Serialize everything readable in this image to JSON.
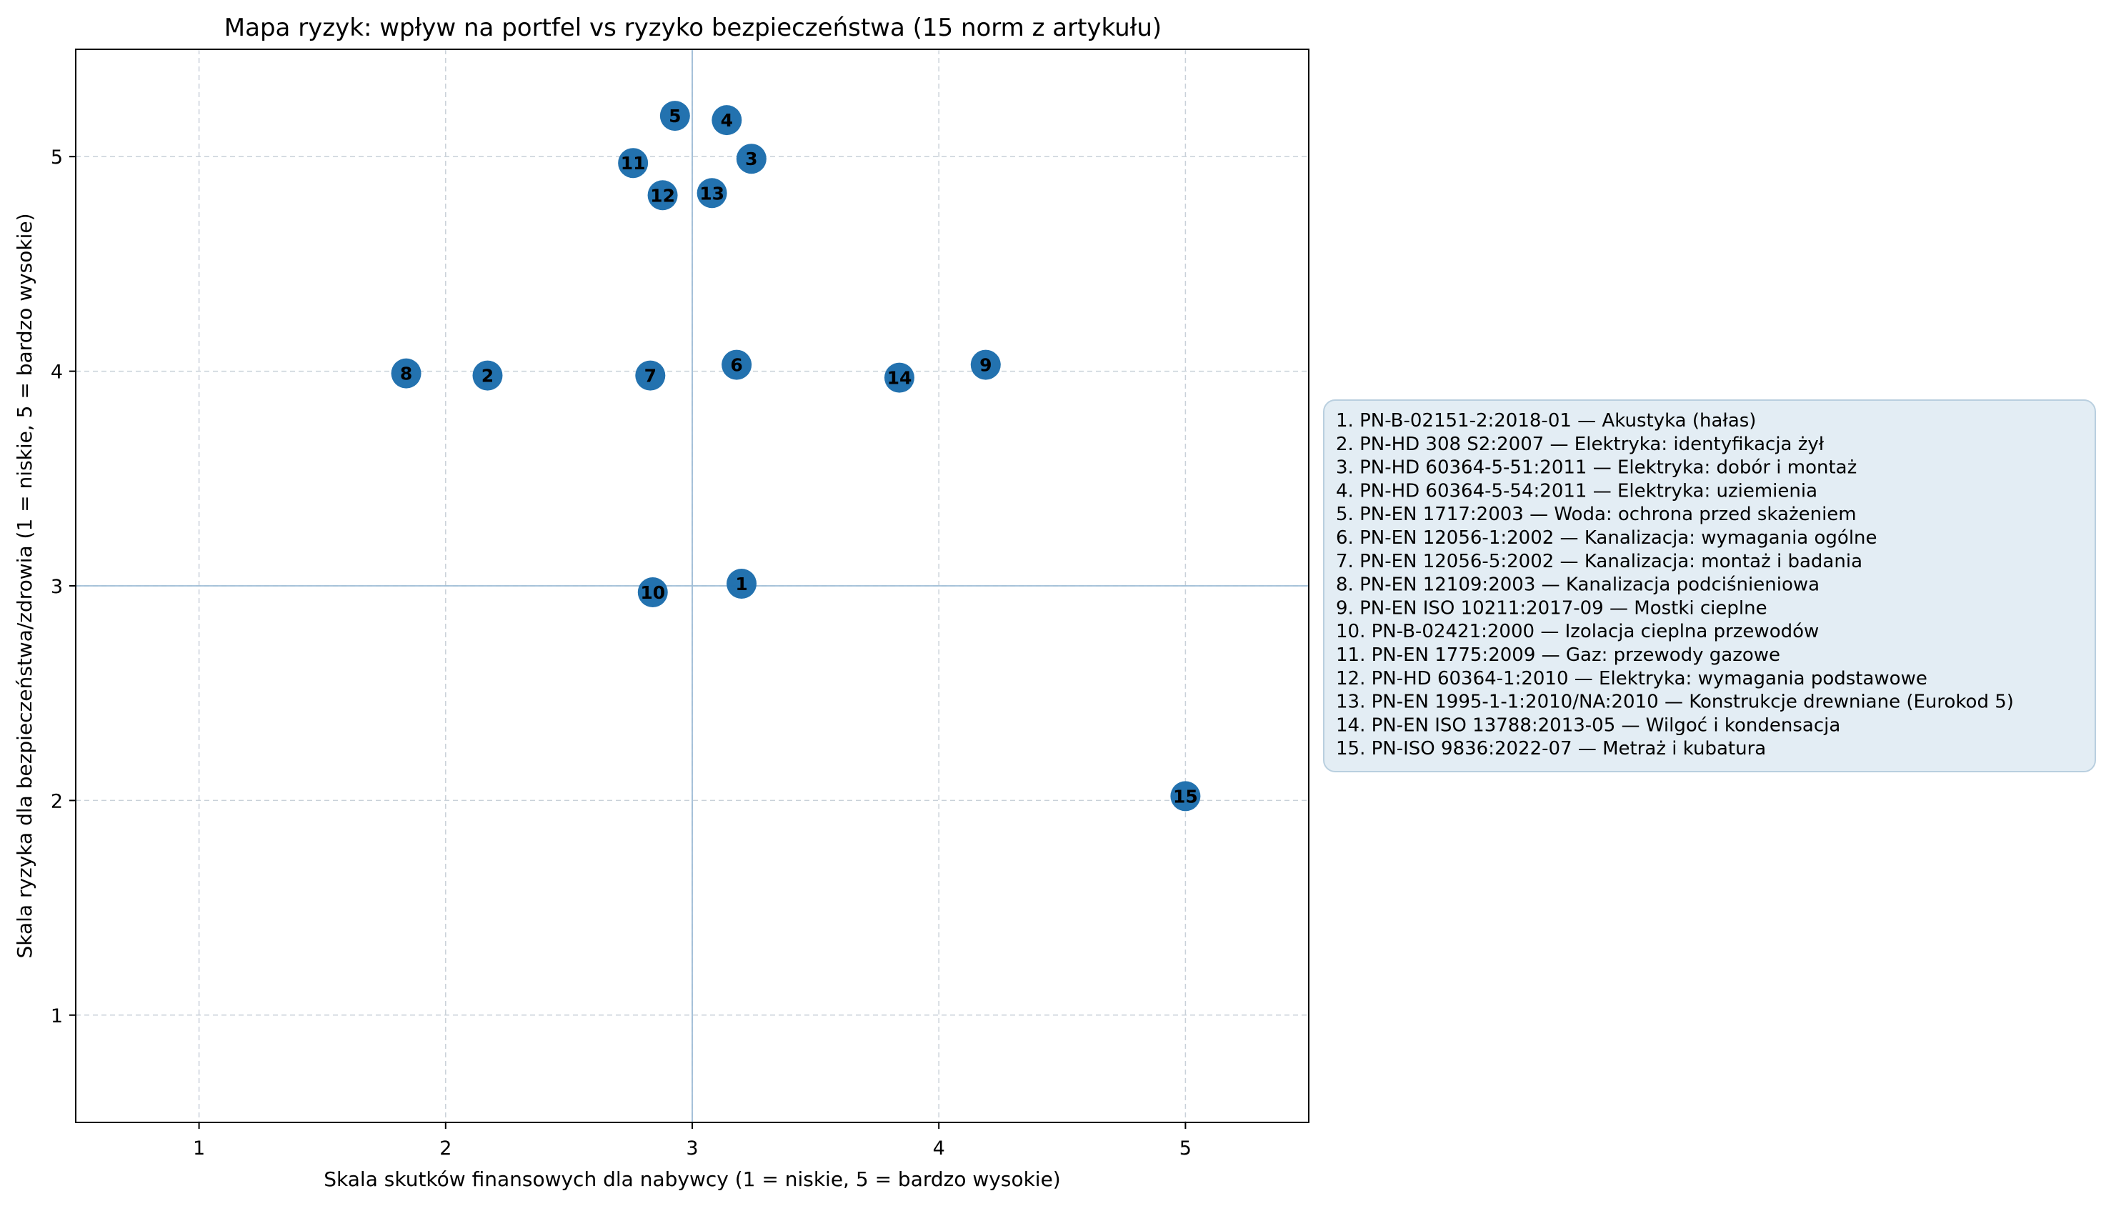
{
  "chart_data": {
    "type": "scatter",
    "title": "Mapa ryzyk: wpływ na portfel vs ryzyko bezpieczeństwa (15 norm z artykułu)",
    "xlabel": "Skala skutków finansowych dla nabywcy (1 = niskie, 5 = bardzo wysokie)",
    "ylabel": "Skala ryzyka dla bezpieczeństwa/zdrowia (1 = niskie, 5 = bardzo wysokie)",
    "xlim": [
      0.5,
      5.5
    ],
    "ylim": [
      0.5,
      5.5
    ],
    "xticks": [
      1,
      2,
      3,
      4,
      5
    ],
    "yticks": [
      1,
      2,
      3,
      4,
      5
    ],
    "xtick_labels": [
      "1",
      "2",
      "3",
      "4",
      "5"
    ],
    "ytick_labels": [
      "1",
      "2",
      "3",
      "4",
      "5"
    ],
    "grid": true,
    "reference_lines": {
      "x": 3,
      "y": 3
    },
    "marker_color": "#1f6fad",
    "legend_bg": "#e3edf4",
    "legend_border": "#b9cfdf",
    "legend_placement": "right, outside plot",
    "points": [
      {
        "id": "1",
        "x": 3.2,
        "y": 3.01
      },
      {
        "id": "2",
        "x": 2.17,
        "y": 3.98
      },
      {
        "id": "3",
        "x": 3.24,
        "y": 4.99
      },
      {
        "id": "4",
        "x": 3.14,
        "y": 5.17
      },
      {
        "id": "5",
        "x": 2.93,
        "y": 5.19
      },
      {
        "id": "6",
        "x": 3.18,
        "y": 4.03
      },
      {
        "id": "7",
        "x": 2.83,
        "y": 3.98
      },
      {
        "id": "8",
        "x": 1.84,
        "y": 3.99
      },
      {
        "id": "9",
        "x": 4.19,
        "y": 4.03
      },
      {
        "id": "10",
        "x": 2.84,
        "y": 2.97
      },
      {
        "id": "11",
        "x": 2.76,
        "y": 4.97
      },
      {
        "id": "12",
        "x": 2.88,
        "y": 4.82
      },
      {
        "id": "13",
        "x": 3.08,
        "y": 4.83
      },
      {
        "id": "14",
        "x": 3.84,
        "y": 3.97
      },
      {
        "id": "15",
        "x": 5.0,
        "y": 2.02
      }
    ],
    "legend": [
      "1. PN-B-02151-2:2018-01 — Akustyka (hałas)",
      "2. PN-HD 308 S2:2007 — Elektryka: identyfikacja żył",
      "3. PN-HD 60364-5-51:2011 — Elektryka: dobór i montaż",
      "4. PN-HD 60364-5-54:2011 — Elektryka: uziemienia",
      "5. PN-EN 1717:2003 — Woda: ochrona przed skażeniem",
      "6. PN-EN 12056-1:2002 — Kanalizacja: wymagania ogólne",
      "7. PN-EN 12056-5:2002 — Kanalizacja: montaż i badania",
      "8. PN-EN 12109:2003 — Kanalizacja podciśnieniowa",
      "9. PN-EN ISO 10211:2017-09 — Mostki cieplne",
      "10. PN-B-02421:2000 — Izolacja cieplna przewodów",
      "11. PN-EN 1775:2009 — Gaz: przewody gazowe",
      "12. PN-HD 60364-1:2010 — Elektryka: wymagania podstawowe",
      "13. PN-EN 1995-1-1:2010/NA:2010 — Konstrukcje drewniane (Eurokod 5)",
      "14. PN-EN ISO 13788:2013-05 — Wilgoć i kondensacja",
      "15. PN-ISO 9836:2022-07 — Metraż i kubatura"
    ]
  }
}
